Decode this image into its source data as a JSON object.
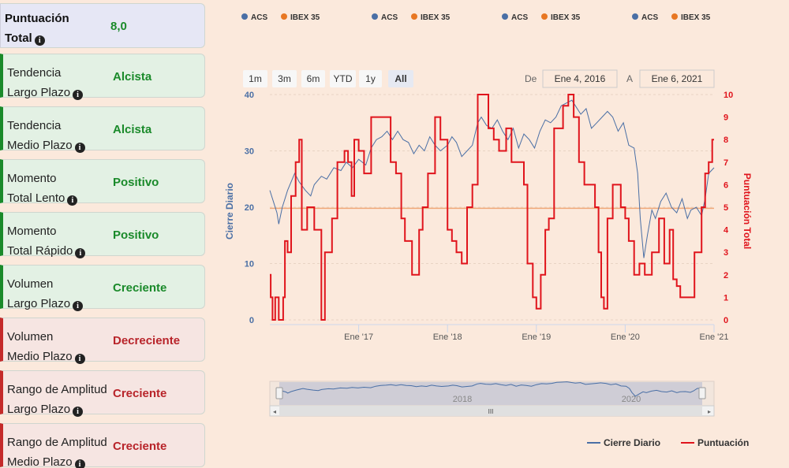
{
  "sidebar": {
    "items": [
      {
        "line1": "Puntuación",
        "line2": "Total",
        "value": "8,0",
        "tone": "head"
      },
      {
        "line1": "Tendencia",
        "line2": "Largo Plazo",
        "value": "Alcista",
        "tone": "pos"
      },
      {
        "line1": "Tendencia",
        "line2": "Medio Plazo",
        "value": "Alcista",
        "tone": "pos"
      },
      {
        "line1": "Momento",
        "line2": "Total Lento",
        "value": "Positivo",
        "tone": "pos"
      },
      {
        "line1": "Momento",
        "line2": "Total Rápido",
        "value": "Positivo",
        "tone": "pos"
      },
      {
        "line1": "Volumen",
        "line2": "Largo Plazo",
        "value": "Creciente",
        "tone": "pos"
      },
      {
        "line1": "Volumen",
        "line2": "Medio Plazo",
        "value": "Decreciente",
        "tone": "neg"
      },
      {
        "line1": "Rango de Amplitud",
        "line2": "Largo Plazo",
        "value": "Creciente",
        "tone": "neg"
      },
      {
        "line1": "Rango de Amplitud",
        "line2": "Medio Plazo",
        "value": "Creciente",
        "tone": "neg"
      }
    ],
    "info_glyph": "i"
  },
  "toplegend": [
    {
      "a": "ACS",
      "b": "IBEX 35"
    },
    {
      "a": "ACS",
      "b": "IBEX 35"
    },
    {
      "a": "ACS",
      "b": "IBEX 35"
    },
    {
      "a": "ACS",
      "b": "IBEX 35"
    }
  ],
  "range": {
    "buttons": [
      "1m",
      "3m",
      "6m",
      "YTD",
      "1y",
      "All"
    ],
    "selected": "All",
    "from_label": "De",
    "from": "Ene 4, 2016",
    "to_label": "A",
    "to": "Ene 6, 2021"
  },
  "navigator": {
    "labels": [
      "2018",
      "2020"
    ],
    "grip": "III"
  },
  "colors": {
    "price": "#4a6fa5",
    "score": "#e0141c",
    "ref": "#f0a878",
    "acs_dot": "#4a6fa5",
    "ibex_dot": "#e87722"
  },
  "chart_data": {
    "type": "line",
    "title": "",
    "x_range": [
      2016.0,
      2021.0
    ],
    "x_ticks": [
      {
        "v": 2017,
        "label": "Ene '17"
      },
      {
        "v": 2018,
        "label": "Ene '18"
      },
      {
        "v": 2019,
        "label": "Ene '19"
      },
      {
        "v": 2020,
        "label": "Ene '20"
      },
      {
        "v": 2021,
        "label": "Ene '21"
      }
    ],
    "y_left": {
      "label": "Cierre Diario",
      "range": [
        0,
        40
      ],
      "ticks": [
        0,
        10,
        20,
        30,
        40
      ]
    },
    "y_right": {
      "label": "Puntuación Total",
      "range": [
        0,
        10
      ],
      "ticks": [
        0,
        1,
        2,
        3,
        4,
        5,
        6,
        7,
        8,
        9,
        10
      ]
    },
    "reference_line": {
      "axis": "right",
      "value": 4.95
    },
    "legend": [
      "Cierre Diario",
      "Puntuación"
    ],
    "series": [
      {
        "name": "Cierre Diario",
        "axis": "left",
        "points": [
          [
            2016.0,
            23.0
          ],
          [
            2016.04,
            21.0
          ],
          [
            2016.08,
            19.0
          ],
          [
            2016.1,
            17.0
          ],
          [
            2016.14,
            20.0
          ],
          [
            2016.2,
            23.0
          ],
          [
            2016.28,
            26.0
          ],
          [
            2016.33,
            24.5
          ],
          [
            2016.4,
            23.0
          ],
          [
            2016.46,
            22.0
          ],
          [
            2016.5,
            24.0
          ],
          [
            2016.58,
            25.5
          ],
          [
            2016.64,
            25.0
          ],
          [
            2016.72,
            27.0
          ],
          [
            2016.8,
            26.5
          ],
          [
            2016.86,
            28.0
          ],
          [
            2016.93,
            27.0
          ],
          [
            2017.0,
            28.5
          ],
          [
            2017.08,
            27.5
          ],
          [
            2017.14,
            30.5
          ],
          [
            2017.2,
            32.0
          ],
          [
            2017.26,
            32.5
          ],
          [
            2017.32,
            33.5
          ],
          [
            2017.38,
            32.0
          ],
          [
            2017.44,
            33.5
          ],
          [
            2017.5,
            32.0
          ],
          [
            2017.56,
            31.5
          ],
          [
            2017.62,
            29.5
          ],
          [
            2017.68,
            31.0
          ],
          [
            2017.74,
            30.0
          ],
          [
            2017.8,
            32.5
          ],
          [
            2017.86,
            31.0
          ],
          [
            2017.92,
            30.0
          ],
          [
            2018.0,
            31.0
          ],
          [
            2018.05,
            32.5
          ],
          [
            2018.1,
            31.5
          ],
          [
            2018.16,
            29.0
          ],
          [
            2018.22,
            30.0
          ],
          [
            2018.28,
            31.0
          ],
          [
            2018.34,
            35.0
          ],
          [
            2018.38,
            36.0
          ],
          [
            2018.44,
            34.5
          ],
          [
            2018.5,
            34.0
          ],
          [
            2018.56,
            35.5
          ],
          [
            2018.62,
            33.5
          ],
          [
            2018.68,
            32.0
          ],
          [
            2018.74,
            34.0
          ],
          [
            2018.8,
            30.5
          ],
          [
            2018.86,
            33.0
          ],
          [
            2018.92,
            32.0
          ],
          [
            2018.98,
            30.5
          ],
          [
            2019.04,
            33.5
          ],
          [
            2019.1,
            35.5
          ],
          [
            2019.16,
            35.0
          ],
          [
            2019.22,
            36.0
          ],
          [
            2019.28,
            38.0
          ],
          [
            2019.34,
            38.5
          ],
          [
            2019.4,
            39.0
          ],
          [
            2019.44,
            38.0
          ],
          [
            2019.5,
            36.5
          ],
          [
            2019.56,
            37.5
          ],
          [
            2019.62,
            34.0
          ],
          [
            2019.68,
            35.0
          ],
          [
            2019.74,
            36.0
          ],
          [
            2019.8,
            37.0
          ],
          [
            2019.86,
            36.0
          ],
          [
            2019.92,
            33.5
          ],
          [
            2019.98,
            35.0
          ],
          [
            2020.04,
            31.0
          ],
          [
            2020.1,
            30.5
          ],
          [
            2020.14,
            26.0
          ],
          [
            2020.17,
            18.0
          ],
          [
            2020.21,
            11.0
          ],
          [
            2020.25,
            15.0
          ],
          [
            2020.3,
            19.5
          ],
          [
            2020.34,
            18.0
          ],
          [
            2020.4,
            21.0
          ],
          [
            2020.46,
            22.5
          ],
          [
            2020.52,
            20.0
          ],
          [
            2020.58,
            19.0
          ],
          [
            2020.64,
            21.5
          ],
          [
            2020.7,
            18.0
          ],
          [
            2020.74,
            19.5
          ],
          [
            2020.8,
            20.0
          ],
          [
            2020.86,
            18.5
          ],
          [
            2020.9,
            21.5
          ],
          [
            2020.94,
            26.0
          ],
          [
            2021.0,
            27.0
          ]
        ]
      },
      {
        "name": "Puntuación",
        "axis": "right",
        "steps": [
          [
            2016.0,
            2.0
          ],
          [
            2016.01,
            1.0
          ],
          [
            2016.03,
            0.0
          ],
          [
            2016.06,
            1.0
          ],
          [
            2016.1,
            0.0
          ],
          [
            2016.15,
            1.0
          ],
          [
            2016.17,
            3.5
          ],
          [
            2016.2,
            3.0
          ],
          [
            2016.24,
            5.5
          ],
          [
            2016.29,
            7.0
          ],
          [
            2016.33,
            8.0
          ],
          [
            2016.36,
            4.0
          ],
          [
            2016.42,
            5.0
          ],
          [
            2016.5,
            4.0
          ],
          [
            2016.58,
            0.0
          ],
          [
            2016.62,
            3.0
          ],
          [
            2016.7,
            4.5
          ],
          [
            2016.76,
            7.0
          ],
          [
            2016.84,
            7.5
          ],
          [
            2016.88,
            7.0
          ],
          [
            2016.92,
            5.5
          ],
          [
            2016.95,
            8.0
          ],
          [
            2017.0,
            7.5
          ],
          [
            2017.06,
            6.5
          ],
          [
            2017.14,
            9.0
          ],
          [
            2017.36,
            7.0
          ],
          [
            2017.42,
            6.5
          ],
          [
            2017.48,
            4.5
          ],
          [
            2017.52,
            3.5
          ],
          [
            2017.6,
            2.0
          ],
          [
            2017.68,
            4.0
          ],
          [
            2017.72,
            5.0
          ],
          [
            2017.78,
            6.5
          ],
          [
            2017.86,
            9.0
          ],
          [
            2017.92,
            8.0
          ],
          [
            2018.0,
            4.0
          ],
          [
            2018.05,
            3.5
          ],
          [
            2018.1,
            3.0
          ],
          [
            2018.16,
            2.5
          ],
          [
            2018.22,
            5.0
          ],
          [
            2018.28,
            6.0
          ],
          [
            2018.34,
            10.0
          ],
          [
            2018.46,
            8.5
          ],
          [
            2018.52,
            8.0
          ],
          [
            2018.58,
            7.5
          ],
          [
            2018.66,
            8.5
          ],
          [
            2018.72,
            7.0
          ],
          [
            2018.8,
            7.0
          ],
          [
            2018.86,
            6.0
          ],
          [
            2018.9,
            2.5
          ],
          [
            2018.96,
            1.0
          ],
          [
            2019.0,
            0.5
          ],
          [
            2019.05,
            2.0
          ],
          [
            2019.1,
            4.0
          ],
          [
            2019.14,
            4.5
          ],
          [
            2019.2,
            8.5
          ],
          [
            2019.3,
            9.5
          ],
          [
            2019.36,
            10.0
          ],
          [
            2019.42,
            9.0
          ],
          [
            2019.48,
            7.0
          ],
          [
            2019.54,
            6.0
          ],
          [
            2019.6,
            6.0
          ],
          [
            2019.66,
            5.0
          ],
          [
            2019.7,
            3.0
          ],
          [
            2019.73,
            1.0
          ],
          [
            2019.76,
            0.5
          ],
          [
            2019.8,
            4.5
          ],
          [
            2019.86,
            6.0
          ],
          [
            2019.95,
            5.0
          ],
          [
            2020.0,
            4.5
          ],
          [
            2020.04,
            3.5
          ],
          [
            2020.1,
            2.0
          ],
          [
            2020.16,
            2.5
          ],
          [
            2020.22,
            2.0
          ],
          [
            2020.3,
            3.0
          ],
          [
            2020.38,
            4.5
          ],
          [
            2020.44,
            2.5
          ],
          [
            2020.5,
            4.0
          ],
          [
            2020.54,
            1.8
          ],
          [
            2020.58,
            1.5
          ],
          [
            2020.62,
            1.0
          ],
          [
            2020.68,
            1.0
          ],
          [
            2020.74,
            1.0
          ],
          [
            2020.78,
            3.0
          ],
          [
            2020.86,
            5.0
          ],
          [
            2020.9,
            6.5
          ],
          [
            2020.94,
            7.0
          ],
          [
            2020.98,
            8.0
          ],
          [
            2021.0,
            8.0
          ]
        ]
      }
    ]
  }
}
